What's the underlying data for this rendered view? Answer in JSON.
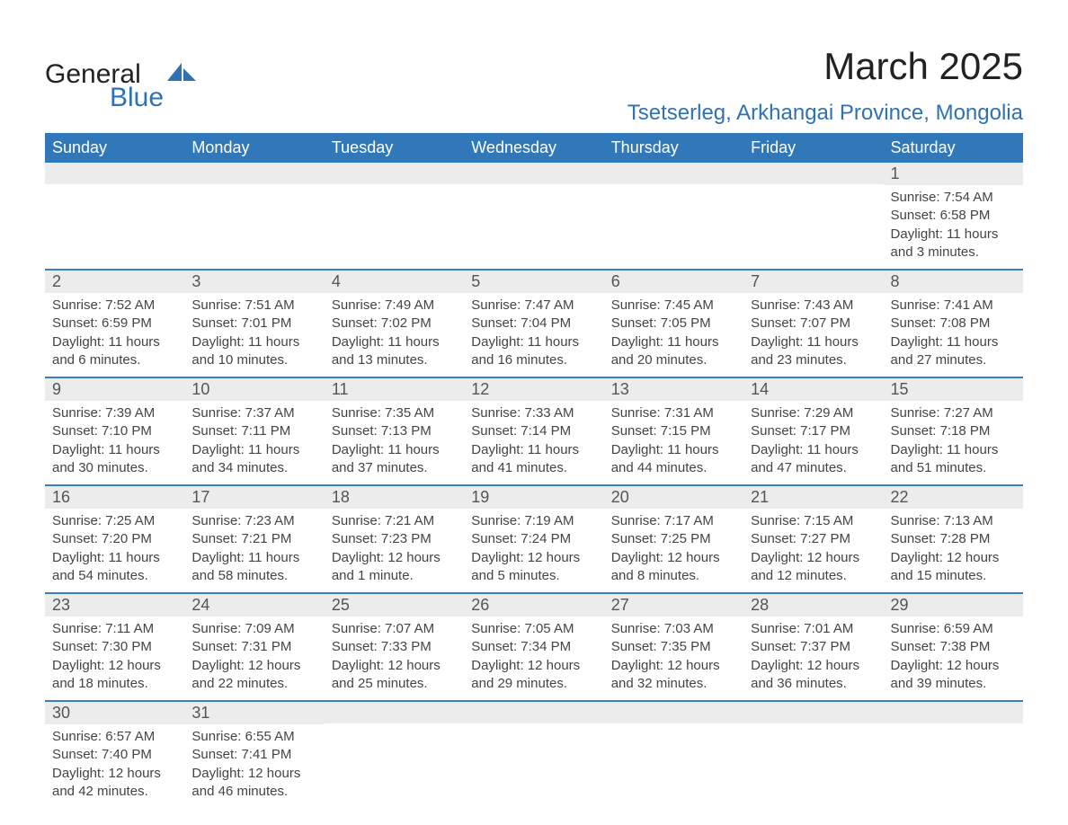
{
  "brand": {
    "top": "General",
    "bottom": "Blue",
    "logo_color": "#2f72b3"
  },
  "title": "March 2025",
  "location": "Tsetserleg, Arkhangai Province, Mongolia",
  "colors": {
    "header_bg": "#3178bb",
    "header_text": "#ffffff",
    "row_sep": "#3b7fc0",
    "daynum_bg": "#ececec",
    "daynum_text": "#555555",
    "body_text": "#444444",
    "accent": "#2f72b3",
    "page_bg": "#ffffff"
  },
  "typography": {
    "title_fontsize": 42,
    "location_fontsize": 24,
    "header_fontsize": 18,
    "daynum_fontsize": 18,
    "detail_fontsize": 15,
    "font_family": "Arial"
  },
  "weekdays": [
    "Sunday",
    "Monday",
    "Tuesday",
    "Wednesday",
    "Thursday",
    "Friday",
    "Saturday"
  ],
  "weeks": [
    [
      {
        "blank": true
      },
      {
        "blank": true
      },
      {
        "blank": true
      },
      {
        "blank": true
      },
      {
        "blank": true
      },
      {
        "blank": true
      },
      {
        "n": "1",
        "sunrise": "Sunrise: 7:54 AM",
        "sunset": "Sunset: 6:58 PM",
        "d1": "Daylight: 11 hours",
        "d2": "and 3 minutes."
      }
    ],
    [
      {
        "n": "2",
        "sunrise": "Sunrise: 7:52 AM",
        "sunset": "Sunset: 6:59 PM",
        "d1": "Daylight: 11 hours",
        "d2": "and 6 minutes."
      },
      {
        "n": "3",
        "sunrise": "Sunrise: 7:51 AM",
        "sunset": "Sunset: 7:01 PM",
        "d1": "Daylight: 11 hours",
        "d2": "and 10 minutes."
      },
      {
        "n": "4",
        "sunrise": "Sunrise: 7:49 AM",
        "sunset": "Sunset: 7:02 PM",
        "d1": "Daylight: 11 hours",
        "d2": "and 13 minutes."
      },
      {
        "n": "5",
        "sunrise": "Sunrise: 7:47 AM",
        "sunset": "Sunset: 7:04 PM",
        "d1": "Daylight: 11 hours",
        "d2": "and 16 minutes."
      },
      {
        "n": "6",
        "sunrise": "Sunrise: 7:45 AM",
        "sunset": "Sunset: 7:05 PM",
        "d1": "Daylight: 11 hours",
        "d2": "and 20 minutes."
      },
      {
        "n": "7",
        "sunrise": "Sunrise: 7:43 AM",
        "sunset": "Sunset: 7:07 PM",
        "d1": "Daylight: 11 hours",
        "d2": "and 23 minutes."
      },
      {
        "n": "8",
        "sunrise": "Sunrise: 7:41 AM",
        "sunset": "Sunset: 7:08 PM",
        "d1": "Daylight: 11 hours",
        "d2": "and 27 minutes."
      }
    ],
    [
      {
        "n": "9",
        "sunrise": "Sunrise: 7:39 AM",
        "sunset": "Sunset: 7:10 PM",
        "d1": "Daylight: 11 hours",
        "d2": "and 30 minutes."
      },
      {
        "n": "10",
        "sunrise": "Sunrise: 7:37 AM",
        "sunset": "Sunset: 7:11 PM",
        "d1": "Daylight: 11 hours",
        "d2": "and 34 minutes."
      },
      {
        "n": "11",
        "sunrise": "Sunrise: 7:35 AM",
        "sunset": "Sunset: 7:13 PM",
        "d1": "Daylight: 11 hours",
        "d2": "and 37 minutes."
      },
      {
        "n": "12",
        "sunrise": "Sunrise: 7:33 AM",
        "sunset": "Sunset: 7:14 PM",
        "d1": "Daylight: 11 hours",
        "d2": "and 41 minutes."
      },
      {
        "n": "13",
        "sunrise": "Sunrise: 7:31 AM",
        "sunset": "Sunset: 7:15 PM",
        "d1": "Daylight: 11 hours",
        "d2": "and 44 minutes."
      },
      {
        "n": "14",
        "sunrise": "Sunrise: 7:29 AM",
        "sunset": "Sunset: 7:17 PM",
        "d1": "Daylight: 11 hours",
        "d2": "and 47 minutes."
      },
      {
        "n": "15",
        "sunrise": "Sunrise: 7:27 AM",
        "sunset": "Sunset: 7:18 PM",
        "d1": "Daylight: 11 hours",
        "d2": "and 51 minutes."
      }
    ],
    [
      {
        "n": "16",
        "sunrise": "Sunrise: 7:25 AM",
        "sunset": "Sunset: 7:20 PM",
        "d1": "Daylight: 11 hours",
        "d2": "and 54 minutes."
      },
      {
        "n": "17",
        "sunrise": "Sunrise: 7:23 AM",
        "sunset": "Sunset: 7:21 PM",
        "d1": "Daylight: 11 hours",
        "d2": "and 58 minutes."
      },
      {
        "n": "18",
        "sunrise": "Sunrise: 7:21 AM",
        "sunset": "Sunset: 7:23 PM",
        "d1": "Daylight: 12 hours",
        "d2": "and 1 minute."
      },
      {
        "n": "19",
        "sunrise": "Sunrise: 7:19 AM",
        "sunset": "Sunset: 7:24 PM",
        "d1": "Daylight: 12 hours",
        "d2": "and 5 minutes."
      },
      {
        "n": "20",
        "sunrise": "Sunrise: 7:17 AM",
        "sunset": "Sunset: 7:25 PM",
        "d1": "Daylight: 12 hours",
        "d2": "and 8 minutes."
      },
      {
        "n": "21",
        "sunrise": "Sunrise: 7:15 AM",
        "sunset": "Sunset: 7:27 PM",
        "d1": "Daylight: 12 hours",
        "d2": "and 12 minutes."
      },
      {
        "n": "22",
        "sunrise": "Sunrise: 7:13 AM",
        "sunset": "Sunset: 7:28 PM",
        "d1": "Daylight: 12 hours",
        "d2": "and 15 minutes."
      }
    ],
    [
      {
        "n": "23",
        "sunrise": "Sunrise: 7:11 AM",
        "sunset": "Sunset: 7:30 PM",
        "d1": "Daylight: 12 hours",
        "d2": "and 18 minutes."
      },
      {
        "n": "24",
        "sunrise": "Sunrise: 7:09 AM",
        "sunset": "Sunset: 7:31 PM",
        "d1": "Daylight: 12 hours",
        "d2": "and 22 minutes."
      },
      {
        "n": "25",
        "sunrise": "Sunrise: 7:07 AM",
        "sunset": "Sunset: 7:33 PM",
        "d1": "Daylight: 12 hours",
        "d2": "and 25 minutes."
      },
      {
        "n": "26",
        "sunrise": "Sunrise: 7:05 AM",
        "sunset": "Sunset: 7:34 PM",
        "d1": "Daylight: 12 hours",
        "d2": "and 29 minutes."
      },
      {
        "n": "27",
        "sunrise": "Sunrise: 7:03 AM",
        "sunset": "Sunset: 7:35 PM",
        "d1": "Daylight: 12 hours",
        "d2": "and 32 minutes."
      },
      {
        "n": "28",
        "sunrise": "Sunrise: 7:01 AM",
        "sunset": "Sunset: 7:37 PM",
        "d1": "Daylight: 12 hours",
        "d2": "and 36 minutes."
      },
      {
        "n": "29",
        "sunrise": "Sunrise: 6:59 AM",
        "sunset": "Sunset: 7:38 PM",
        "d1": "Daylight: 12 hours",
        "d2": "and 39 minutes."
      }
    ],
    [
      {
        "n": "30",
        "sunrise": "Sunrise: 6:57 AM",
        "sunset": "Sunset: 7:40 PM",
        "d1": "Daylight: 12 hours",
        "d2": "and 42 minutes."
      },
      {
        "n": "31",
        "sunrise": "Sunrise: 6:55 AM",
        "sunset": "Sunset: 7:41 PM",
        "d1": "Daylight: 12 hours",
        "d2": "and 46 minutes."
      },
      {
        "blank": true
      },
      {
        "blank": true
      },
      {
        "blank": true
      },
      {
        "blank": true
      },
      {
        "blank": true
      }
    ]
  ]
}
